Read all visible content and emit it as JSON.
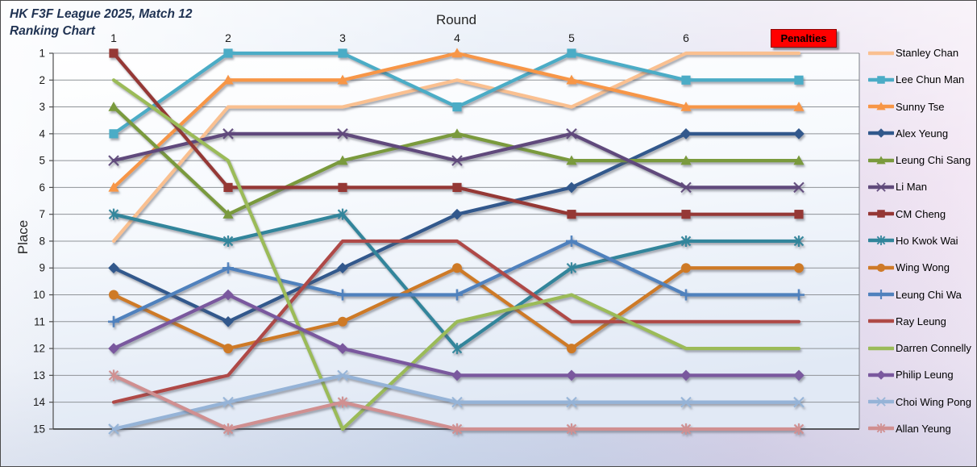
{
  "header": {
    "title_line1": "HK F3F League 2025, Match 12",
    "title_line2": "Ranking Chart"
  },
  "penalties_button": {
    "label": "Penalties",
    "bg_color": "#FF0000",
    "text_color": "#000000"
  },
  "chart_data": {
    "type": "line",
    "subtype": "bump-ranking-chart",
    "x_title": "Round",
    "y_title": "Place",
    "columns": [
      "1",
      "2",
      "3",
      "4",
      "5",
      "6",
      "Penalties"
    ],
    "x_tick_labels": [
      "1",
      "2",
      "3",
      "4",
      "5",
      "6"
    ],
    "y_tick_labels": [
      "1",
      "2",
      "3",
      "4",
      "5",
      "6",
      "7",
      "8",
      "9",
      "10",
      "11",
      "12",
      "13",
      "14",
      "15"
    ],
    "ylim": [
      1,
      15
    ],
    "y_axis_reversed": true,
    "grid": "horizontal",
    "legend_position": "right",
    "series": [
      {
        "name": "Stanley Chan",
        "color": "#FAC090",
        "marker": "none",
        "values": [
          8,
          3,
          3,
          2,
          3,
          1,
          1
        ]
      },
      {
        "name": "Lee Chun Man",
        "color": "#4BACC6",
        "marker": "square",
        "values": [
          4,
          1,
          1,
          3,
          1,
          2,
          2
        ]
      },
      {
        "name": "Sunny Tse",
        "color": "#F79646",
        "marker": "triangle",
        "values": [
          6,
          2,
          2,
          1,
          2,
          3,
          3
        ]
      },
      {
        "name": "Alex Yeung",
        "color": "#31598C",
        "marker": "diamond",
        "values": [
          9,
          11,
          9,
          7,
          6,
          4,
          4
        ]
      },
      {
        "name": "Leung Chi Sang",
        "color": "#7A9A3D",
        "marker": "triangle",
        "values": [
          3,
          7,
          5,
          4,
          5,
          5,
          5
        ]
      },
      {
        "name": "Li Man",
        "color": "#604A7B",
        "marker": "x",
        "values": [
          5,
          4,
          4,
          5,
          4,
          6,
          6
        ]
      },
      {
        "name": "CM Cheng",
        "color": "#953735",
        "marker": "square",
        "values": [
          1,
          6,
          6,
          6,
          7,
          7,
          7
        ]
      },
      {
        "name": "Ho Kwok Wai",
        "color": "#31859B",
        "marker": "asterisk",
        "values": [
          7,
          8,
          7,
          12,
          9,
          8,
          8
        ]
      },
      {
        "name": "Wing Wong",
        "color": "#CE7A28",
        "marker": "circle",
        "values": [
          10,
          12,
          11,
          9,
          12,
          9,
          9
        ]
      },
      {
        "name": "Leung Chi Wa",
        "color": "#4F81BD",
        "marker": "plus",
        "values": [
          11,
          9,
          10,
          10,
          8,
          10,
          10
        ]
      },
      {
        "name": "Ray Leung",
        "color": "#AF4A46",
        "marker": "none",
        "values": [
          14,
          13,
          8,
          8,
          11,
          11,
          11
        ]
      },
      {
        "name": "Darren Connelly",
        "color": "#9BBB59",
        "marker": "none",
        "values": [
          2,
          5,
          15,
          11,
          10,
          12,
          12
        ]
      },
      {
        "name": "Philip Leung",
        "color": "#7A589E",
        "marker": "diamond",
        "values": [
          12,
          10,
          12,
          13,
          13,
          13,
          13
        ]
      },
      {
        "name": "Choi Wing Pong",
        "color": "#95B3D7",
        "marker": "x",
        "values": [
          15,
          14,
          13,
          14,
          14,
          14,
          14
        ]
      },
      {
        "name": "Allan Yeung",
        "color": "#D08F90",
        "marker": "asterisk",
        "values": [
          13,
          15,
          14,
          15,
          15,
          15,
          15
        ]
      }
    ]
  }
}
